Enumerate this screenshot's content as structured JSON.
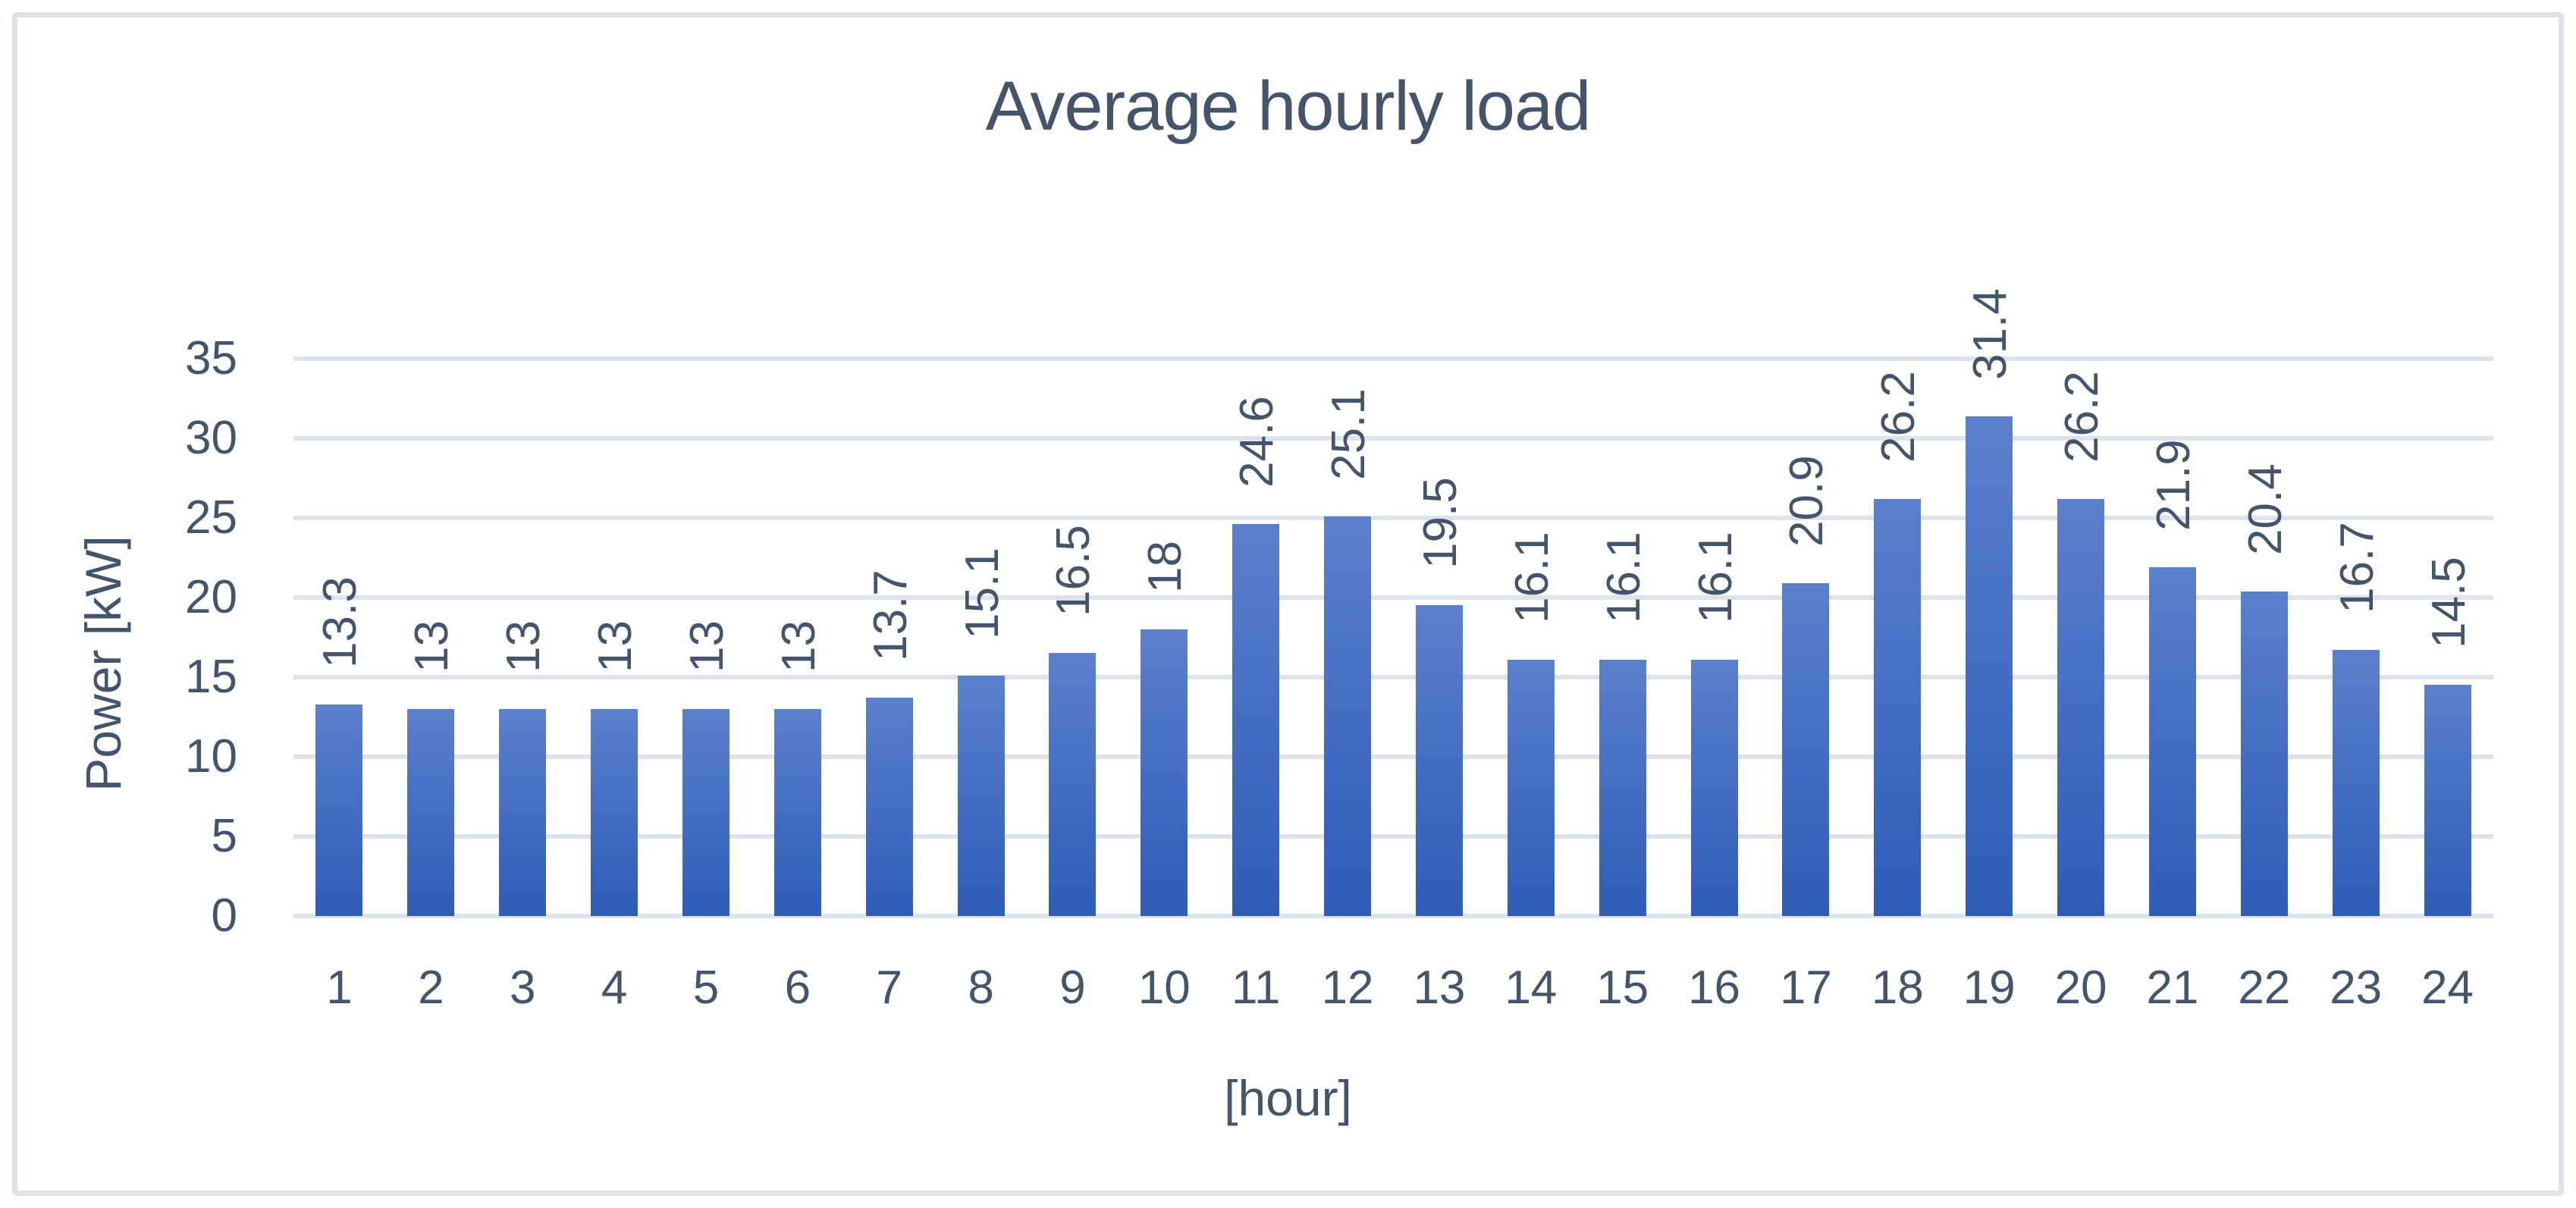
{
  "chart_data": {
    "type": "bar",
    "title": "Average hourly load",
    "xlabel": "[hour]",
    "ylabel": "Power [kW]",
    "categories": [
      1,
      2,
      3,
      4,
      5,
      6,
      7,
      8,
      9,
      10,
      11,
      12,
      13,
      14,
      15,
      16,
      17,
      18,
      19,
      20,
      21,
      22,
      23,
      24
    ],
    "values": [
      13.3,
      13,
      13,
      13,
      13,
      13,
      13.7,
      15.1,
      16.5,
      18,
      24.6,
      25.1,
      19.5,
      16.1,
      16.1,
      16.1,
      20.9,
      26.2,
      31.4,
      26.2,
      21.9,
      20.4,
      16.7,
      14.5
    ],
    "data_labels": [
      "13.3",
      "13",
      "13",
      "13",
      "13",
      "13",
      "13.7",
      "15.1",
      "16.5",
      "18",
      "24.6",
      "25.1",
      "19.5",
      "16.1",
      "16.1",
      "16.1",
      "20.9",
      "26.2",
      "31.4",
      "26.2",
      "21.9",
      "20.4",
      "16.7",
      "14.5"
    ],
    "ylim": [
      0,
      35
    ],
    "ytick_step": 5,
    "ytick_labels": [
      "35",
      "30",
      "25",
      "20",
      "15",
      "10",
      "5",
      "0"
    ],
    "grid": true,
    "legend_position": "none",
    "data_label_orientation": "rotated-90"
  },
  "style": {
    "background": "#FFFFFF",
    "text_color": "#44546A",
    "gridline_color": "#DEE2EC",
    "border_color": "#DEE2E9",
    "bar_gradient_top": "#5B80CC",
    "bar_gradient_bottom": "#2E5CB9"
  }
}
